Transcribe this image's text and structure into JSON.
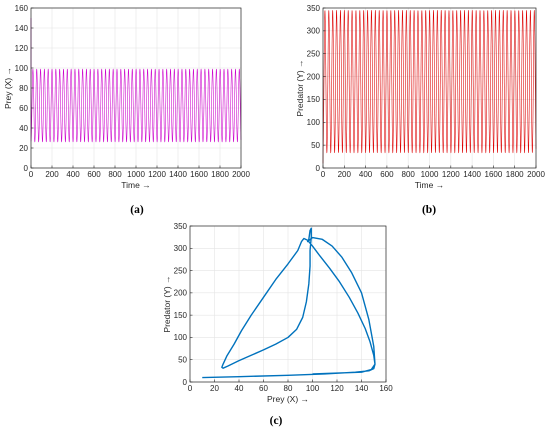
{
  "chart_data": [
    {
      "id": "a",
      "type": "line",
      "caption": "(a)",
      "xlabel": "Time →",
      "ylabel": "Prey (X) →",
      "xlim": [
        0,
        2000
      ],
      "ylim": [
        0,
        160
      ],
      "xticks": [
        0,
        200,
        400,
        600,
        800,
        1000,
        1200,
        1400,
        1600,
        1800,
        2000
      ],
      "yticks": [
        0,
        20,
        40,
        60,
        80,
        100,
        120,
        140,
        160
      ],
      "grid": true,
      "series": [
        {
          "color": "#cc00cc",
          "initial_value": 150,
          "min": 26,
          "max": 99,
          "period": 36.4
        }
      ]
    },
    {
      "id": "b",
      "type": "line",
      "caption": "(b)",
      "xlabel": "Time →",
      "ylabel": "Predator (Y) →",
      "xlim": [
        0,
        2000
      ],
      "ylim": [
        0,
        350
      ],
      "xticks": [
        0,
        200,
        400,
        600,
        800,
        1000,
        1200,
        1400,
        1600,
        1800,
        2000
      ],
      "yticks": [
        0,
        50,
        100,
        150,
        200,
        250,
        300,
        350
      ],
      "grid": true,
      "series": [
        {
          "color": "#dd0000",
          "initial_value": 10,
          "min": 33,
          "max": 345,
          "period": 36.4
        }
      ]
    },
    {
      "id": "c",
      "type": "line",
      "caption": "(c)",
      "xlabel": "Prey (X) →",
      "ylabel": "Predator (Y) →",
      "xlim": [
        0,
        160
      ],
      "ylim": [
        0,
        350
      ],
      "xticks": [
        0,
        20,
        40,
        60,
        80,
        100,
        120,
        140,
        160
      ],
      "yticks": [
        0,
        50,
        100,
        150,
        200,
        250,
        300,
        350
      ],
      "grid": true,
      "series": [
        {
          "color": "#0072bd",
          "x": [
            10,
            40,
            80,
            110,
            135,
            146,
            150,
            151,
            150,
            147,
            143,
            137,
            130,
            122,
            114,
            106,
            100,
            96,
            93,
            91,
            88,
            80,
            70,
            60,
            50,
            42,
            36,
            30,
            27,
            26,
            27,
            31,
            40,
            50,
            60,
            70,
            80,
            87,
            92,
            95,
            97,
            98,
            98,
            99,
            99,
            98,
            97,
            96,
            100,
            108,
            116,
            124,
            132,
            140,
            146,
            150,
            151,
            148,
            140,
            120,
            100
          ],
          "y": [
            10,
            12,
            15,
            18,
            22,
            25,
            30,
            40,
            60,
            90,
            120,
            155,
            190,
            225,
            255,
            283,
            305,
            318,
            322,
            315,
            295,
            265,
            230,
            190,
            150,
            115,
            85,
            58,
            40,
            33,
            31,
            36,
            48,
            60,
            72,
            85,
            100,
            118,
            145,
            180,
            220,
            260,
            295,
            325,
            345,
            340,
            320,
            315,
            324,
            320,
            305,
            280,
            245,
            200,
            140,
            80,
            40,
            28,
            22,
            20,
            18
          ]
        }
      ]
    }
  ]
}
